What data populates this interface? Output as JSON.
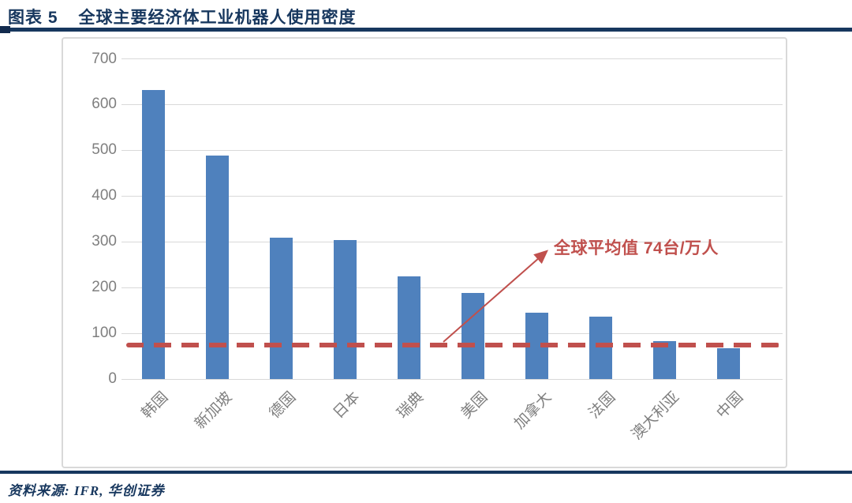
{
  "header": {
    "figure_label": "图表 5",
    "title": "全球主要经济体工业机器人使用密度"
  },
  "footer": {
    "source": "资料来源: IFR, 华创证券"
  },
  "chart_data": {
    "type": "bar",
    "title": "全球主要经济体工业机器人使用密度",
    "categories": [
      "韩国",
      "新加坡",
      "德国",
      "日本",
      "瑞典",
      "美国",
      "加拿大",
      "法国",
      "澳大利亚",
      "中国"
    ],
    "values": [
      631,
      488,
      309,
      303,
      224,
      189,
      145,
      137,
      83,
      68
    ],
    "xlabel": "",
    "ylabel": "",
    "ylim": [
      0,
      700
    ],
    "ytick_step": 100,
    "grid": true,
    "legend": "none",
    "bar_color": "#4f81bd",
    "axis_label_color": "#7f7f7f",
    "gridline_color": "#d9d9d9",
    "average_line": {
      "value": 74,
      "unit": "台/万人",
      "label": "全球平均值 74台/万人",
      "style": "dashed",
      "color": "#c0504d"
    }
  },
  "colors": {
    "accent_navy": "#17375e",
    "bar_blue": "#4f81bd",
    "avg_red": "#c0504d"
  }
}
